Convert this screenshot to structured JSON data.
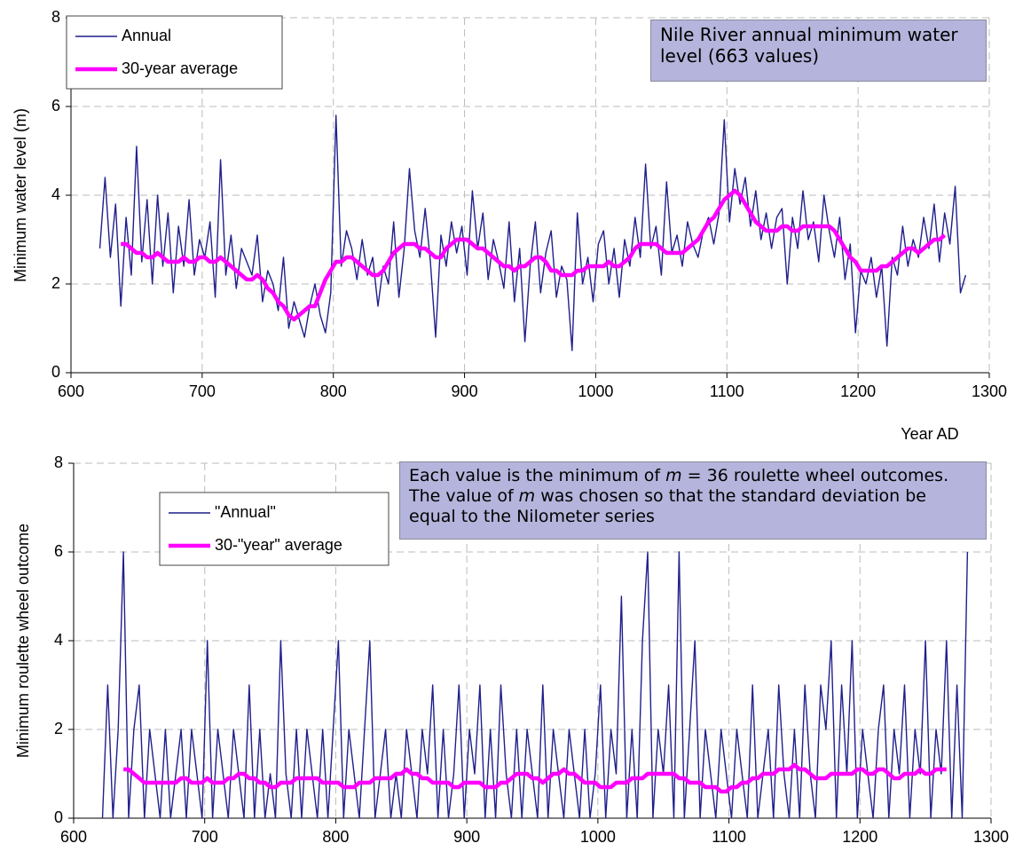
{
  "chart_data": [
    {
      "type": "line",
      "annotation": [
        "Nile River annual minimum water level (663 values)"
      ],
      "ylabel": "Minimum water level (m)",
      "xlabel": "Year AD",
      "xlim": [
        600,
        1300
      ],
      "xticks": [
        600,
        700,
        800,
        900,
        1000,
        1100,
        1200,
        1300
      ],
      "ylim": [
        0,
        8
      ],
      "yticks": [
        0,
        2,
        4,
        6,
        8
      ],
      "grid": true,
      "legend": "upper left",
      "x": [
        622,
        626,
        630,
        634,
        638,
        642,
        646,
        650,
        654,
        658,
        662,
        666,
        670,
        674,
        678,
        682,
        686,
        690,
        694,
        698,
        702,
        706,
        710,
        714,
        718,
        722,
        726,
        730,
        734,
        738,
        742,
        746,
        750,
        754,
        758,
        762,
        766,
        770,
        774,
        778,
        782,
        786,
        790,
        794,
        798,
        802,
        806,
        810,
        814,
        818,
        822,
        826,
        830,
        834,
        838,
        842,
        846,
        850,
        854,
        858,
        862,
        866,
        870,
        874,
        878,
        882,
        886,
        890,
        894,
        898,
        902,
        906,
        910,
        914,
        918,
        922,
        926,
        930,
        934,
        938,
        942,
        946,
        950,
        954,
        958,
        962,
        966,
        970,
        974,
        978,
        982,
        986,
        990,
        994,
        998,
        1002,
        1006,
        1010,
        1014,
        1018,
        1022,
        1026,
        1030,
        1034,
        1038,
        1042,
        1046,
        1050,
        1054,
        1058,
        1062,
        1066,
        1070,
        1074,
        1078,
        1082,
        1086,
        1090,
        1094,
        1098,
        1102,
        1106,
        1110,
        1114,
        1118,
        1122,
        1126,
        1130,
        1134,
        1138,
        1142,
        1146,
        1150,
        1154,
        1158,
        1162,
        1166,
        1170,
        1174,
        1178,
        1182,
        1186,
        1190,
        1194,
        1198,
        1202,
        1206,
        1210,
        1214,
        1218,
        1222,
        1226,
        1230,
        1234,
        1238,
        1242,
        1246,
        1250,
        1254,
        1258,
        1262,
        1266,
        1270,
        1274,
        1278,
        1282
      ],
      "series": [
        {
          "name": "Annual",
          "color": "#1f1f8c",
          "values": [
            2.8,
            4.4,
            2.6,
            3.8,
            1.5,
            3.5,
            2.2,
            5.1,
            2.5,
            3.9,
            2.0,
            4.0,
            2.4,
            3.6,
            1.8,
            3.3,
            2.4,
            3.9,
            2.2,
            3.0,
            2.6,
            3.4,
            1.7,
            4.8,
            2.2,
            3.1,
            1.9,
            2.8,
            2.5,
            2.2,
            3.1,
            1.6,
            2.3,
            2.0,
            1.4,
            2.6,
            1.0,
            1.6,
            1.2,
            0.8,
            1.5,
            2.0,
            1.3,
            0.9,
            1.8,
            5.8,
            2.4,
            3.2,
            2.8,
            2.1,
            3.0,
            2.2,
            2.6,
            1.5,
            2.4,
            2.0,
            3.4,
            1.7,
            2.8,
            4.6,
            3.2,
            2.6,
            3.7,
            2.5,
            0.8,
            3.1,
            2.4,
            3.4,
            2.7,
            3.3,
            2.2,
            4.1,
            2.8,
            3.6,
            2.1,
            3.0,
            2.5,
            1.9,
            3.4,
            1.6,
            2.8,
            0.7,
            2.4,
            3.4,
            1.8,
            2.7,
            3.2,
            1.7,
            2.4,
            2.1,
            0.5,
            3.6,
            2.0,
            2.6,
            1.6,
            2.9,
            3.2,
            2.0,
            2.8,
            1.7,
            3.0,
            2.4,
            3.5,
            2.6,
            4.7,
            2.8,
            3.3,
            2.2,
            4.3,
            2.7,
            3.1,
            2.4,
            3.4,
            2.9,
            2.6,
            3.2,
            3.5,
            2.9,
            3.6,
            5.7,
            3.4,
            4.6,
            3.8,
            4.4,
            3.3,
            4.1,
            3.0,
            3.6,
            2.8,
            3.5,
            3.7,
            2.0,
            3.5,
            2.8,
            4.1,
            3.0,
            3.4,
            2.5,
            4.0,
            3.2,
            2.6,
            3.5,
            2.1,
            2.9,
            0.9,
            2.3,
            2.0,
            2.6,
            1.7,
            2.4,
            0.6,
            2.6,
            2.2,
            3.3,
            2.4,
            3.0,
            2.6,
            3.5,
            2.8,
            3.8,
            2.5,
            3.6,
            2.9,
            4.2,
            1.8,
            2.2
          ]
        },
        {
          "name": "30-year average",
          "color": "#ff00ff",
          "values": [
            null,
            null,
            null,
            null,
            2.9,
            2.9,
            2.8,
            2.7,
            2.7,
            2.6,
            2.6,
            2.7,
            2.6,
            2.5,
            2.5,
            2.5,
            2.6,
            2.5,
            2.5,
            2.6,
            2.6,
            2.5,
            2.5,
            2.6,
            2.5,
            2.4,
            2.3,
            2.2,
            2.1,
            2.1,
            2.2,
            2.1,
            1.9,
            1.8,
            1.6,
            1.5,
            1.3,
            1.2,
            1.3,
            1.4,
            1.5,
            1.5,
            1.8,
            2.1,
            2.3,
            2.5,
            2.5,
            2.6,
            2.6,
            2.5,
            2.4,
            2.3,
            2.2,
            2.2,
            2.3,
            2.5,
            2.7,
            2.8,
            2.9,
            2.9,
            2.9,
            2.8,
            2.8,
            2.7,
            2.6,
            2.6,
            2.8,
            2.9,
            3.0,
            3.0,
            3.0,
            2.9,
            2.8,
            2.8,
            2.7,
            2.6,
            2.5,
            2.4,
            2.4,
            2.3,
            2.4,
            2.4,
            2.5,
            2.6,
            2.6,
            2.5,
            2.3,
            2.3,
            2.2,
            2.2,
            2.2,
            2.3,
            2.3,
            2.4,
            2.4,
            2.4,
            2.4,
            2.5,
            2.4,
            2.4,
            2.5,
            2.6,
            2.8,
            2.9,
            2.9,
            2.9,
            2.9,
            2.8,
            2.7,
            2.7,
            2.7,
            2.7,
            2.8,
            2.9,
            3.0,
            3.2,
            3.4,
            3.5,
            3.7,
            3.9,
            4.0,
            4.1,
            4.0,
            3.8,
            3.6,
            3.4,
            3.3,
            3.2,
            3.2,
            3.2,
            3.3,
            3.3,
            3.2,
            3.2,
            3.3,
            3.3,
            3.3,
            3.3,
            3.3,
            3.3,
            3.2,
            3.0,
            2.8,
            2.6,
            2.5,
            2.3,
            2.3,
            2.3,
            2.3,
            2.4,
            2.4,
            2.5,
            2.6,
            2.7,
            2.8,
            2.8,
            2.7,
            2.8,
            2.9,
            3.0,
            3.0,
            3.1,
            null,
            null,
            null,
            null
          ]
        }
      ]
    },
    {
      "type": "line",
      "annotation": [
        "Each value is the minimum of ",
        "m",
        " = 36 roulette wheel outcomes. The value of ",
        "m",
        " was chosen so that the standard deviation be equal to the Nilometer series"
      ],
      "ylabel": "Minimum roulette wheel outcome",
      "xlim": [
        600,
        1300
      ],
      "xticks": [
        600,
        700,
        800,
        900,
        1000,
        1100,
        1200,
        1300
      ],
      "ylim": [
        0,
        8
      ],
      "yticks": [
        0,
        2,
        4,
        6,
        8
      ],
      "grid": true,
      "legend": "upper left",
      "x": [
        622,
        626,
        630,
        634,
        638,
        642,
        646,
        650,
        654,
        658,
        662,
        666,
        670,
        674,
        678,
        682,
        686,
        690,
        694,
        698,
        702,
        706,
        710,
        714,
        718,
        722,
        726,
        730,
        734,
        738,
        742,
        746,
        750,
        754,
        758,
        762,
        766,
        770,
        774,
        778,
        782,
        786,
        790,
        794,
        798,
        802,
        806,
        810,
        814,
        818,
        822,
        826,
        830,
        834,
        838,
        842,
        846,
        850,
        854,
        858,
        862,
        866,
        870,
        874,
        878,
        882,
        886,
        890,
        894,
        898,
        902,
        906,
        910,
        914,
        918,
        922,
        926,
        930,
        934,
        938,
        942,
        946,
        950,
        954,
        958,
        962,
        966,
        970,
        974,
        978,
        982,
        986,
        990,
        994,
        998,
        1002,
        1006,
        1010,
        1014,
        1018,
        1022,
        1026,
        1030,
        1034,
        1038,
        1042,
        1046,
        1050,
        1054,
        1058,
        1062,
        1066,
        1070,
        1074,
        1078,
        1082,
        1086,
        1090,
        1094,
        1098,
        1102,
        1106,
        1110,
        1114,
        1118,
        1122,
        1126,
        1130,
        1134,
        1138,
        1142,
        1146,
        1150,
        1154,
        1158,
        1162,
        1166,
        1170,
        1174,
        1178,
        1182,
        1186,
        1190,
        1194,
        1198,
        1202,
        1206,
        1210,
        1214,
        1218,
        1222,
        1226,
        1230,
        1234,
        1238,
        1242,
        1246,
        1250,
        1254,
        1258,
        1262,
        1266,
        1270,
        1274,
        1278,
        1282
      ],
      "series": [
        {
          "name": "\"Annual\"",
          "color": "#1f1f8c",
          "values": [
            0,
            3,
            0,
            2,
            6,
            0,
            2,
            3,
            0,
            2,
            1,
            0,
            2,
            0,
            1,
            2,
            0,
            2,
            1,
            0,
            4,
            0,
            2,
            1,
            0,
            2,
            1,
            0,
            3,
            0,
            2,
            0,
            1,
            0,
            4,
            1,
            0,
            2,
            0,
            2,
            1,
            0,
            2,
            0,
            2,
            4,
            0,
            2,
            1,
            0,
            2,
            4,
            0,
            1,
            2,
            0,
            1,
            0,
            2,
            1,
            0,
            2,
            1,
            3,
            0,
            2,
            0,
            1,
            3,
            0,
            2,
            1,
            3,
            0,
            2,
            0,
            3,
            1,
            0,
            2,
            0,
            2,
            1,
            0,
            3,
            0,
            2,
            1,
            0,
            2,
            1,
            0,
            2,
            0,
            1,
            3,
            0,
            2,
            1,
            5,
            0,
            2,
            0,
            4,
            6,
            0,
            2,
            1,
            3,
            0,
            6,
            0,
            2,
            4,
            0,
            2,
            1,
            0,
            2,
            1,
            0,
            2,
            1,
            0,
            3,
            0,
            1,
            2,
            0,
            3,
            1,
            0,
            2,
            0,
            3,
            1,
            0,
            3,
            2,
            4,
            0,
            3,
            1,
            4,
            0,
            2,
            1,
            0,
            2,
            3,
            0,
            2,
            1,
            3,
            0,
            2,
            1,
            4,
            0,
            2,
            1,
            4,
            0,
            3,
            0,
            6
          ]
        },
        {
          "name": "30-\"year\" average",
          "color": "#ff00ff",
          "values": [
            null,
            null,
            null,
            null,
            1.1,
            1.1,
            1.0,
            0.9,
            0.8,
            0.8,
            0.8,
            0.8,
            0.8,
            0.8,
            0.8,
            0.9,
            0.9,
            0.8,
            0.8,
            0.8,
            0.9,
            0.8,
            0.8,
            0.8,
            0.9,
            0.9,
            1.0,
            1.0,
            0.9,
            0.9,
            0.8,
            0.8,
            0.7,
            0.7,
            0.8,
            0.8,
            0.8,
            0.9,
            0.9,
            0.9,
            0.9,
            0.9,
            0.8,
            0.8,
            0.8,
            0.8,
            0.7,
            0.7,
            0.7,
            0.8,
            0.8,
            0.8,
            0.9,
            0.9,
            0.9,
            0.9,
            1.0,
            1.0,
            1.1,
            1.0,
            1.0,
            0.9,
            0.9,
            0.8,
            0.8,
            0.8,
            0.8,
            0.7,
            0.7,
            0.8,
            0.8,
            0.8,
            0.8,
            0.7,
            0.7,
            0.7,
            0.8,
            0.8,
            0.9,
            1.0,
            1.0,
            1.0,
            0.9,
            0.9,
            0.8,
            0.9,
            1.0,
            1.0,
            1.1,
            1.0,
            1.0,
            0.9,
            0.8,
            0.8,
            0.8,
            0.7,
            0.7,
            0.7,
            0.8,
            0.8,
            0.8,
            0.9,
            0.9,
            0.9,
            1.0,
            1.0,
            1.0,
            1.0,
            1.0,
            1.0,
            0.9,
            0.9,
            0.8,
            0.8,
            0.8,
            0.7,
            0.7,
            0.7,
            0.6,
            0.6,
            0.7,
            0.7,
            0.8,
            0.8,
            0.9,
            0.9,
            1.0,
            1.0,
            1.0,
            1.1,
            1.1,
            1.1,
            1.2,
            1.1,
            1.1,
            1.0,
            0.9,
            0.9,
            0.9,
            1.0,
            1.0,
            1.0,
            1.0,
            1.0,
            1.1,
            1.1,
            1.0,
            1.0,
            1.1,
            1.1,
            1.0,
            0.9,
            0.9,
            1.0,
            1.0,
            1.0,
            1.1,
            1.0,
            1.0,
            1.1,
            1.1,
            1.1,
            null,
            null,
            null,
            null
          ]
        }
      ]
    }
  ]
}
